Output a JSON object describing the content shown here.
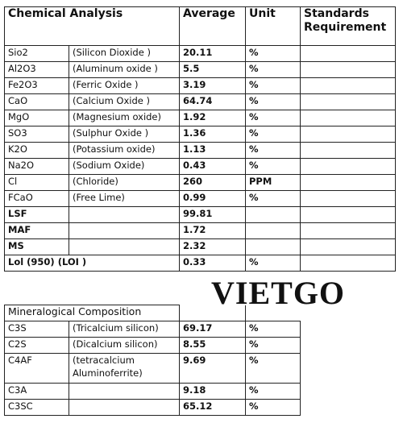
{
  "analysis": {
    "headers": {
      "component": "Chemical Analysis",
      "average": "Average",
      "unit": "Unit",
      "standards": "Standards Requirement"
    },
    "rows": [
      {
        "formula": "Sio2",
        "name": "(Silicon Dioxide )",
        "average": "20.11",
        "unit": "%"
      },
      {
        "formula": "Al2O3",
        "name": "(Aluminum oxide )",
        "average": "5.5",
        "unit": "%"
      },
      {
        "formula": "Fe2O3",
        "name": "(Ferric Oxide )",
        "average": "3.19",
        "unit": "%"
      },
      {
        "formula": "CaO",
        "name": "(Calcium Oxide )",
        "average": "64.74",
        "unit": "%"
      },
      {
        "formula": "MgO",
        "name": "(Magnesium oxide)",
        "average": "1.92",
        "unit": "%"
      },
      {
        "formula": "SO3",
        "name": "(Sulphur Oxide )",
        "average": "1.36",
        "unit": "%"
      },
      {
        "formula": "K2O",
        "name": "(Potassium oxide)",
        "average": "1.13",
        "unit": "%"
      },
      {
        "formula": "Na2O",
        "name": "(Sodium Oxide)",
        "average": "0.43",
        "unit": "%"
      },
      {
        "formula": "Cl",
        "name": "(Chloride)",
        "average": "260",
        "unit": "PPM"
      },
      {
        "formula": "FCaO",
        "name": "(Free Lime)",
        "average": "0.99",
        "unit": "%"
      },
      {
        "formula": "LSF",
        "average": "99.81"
      },
      {
        "formula": "MAF",
        "average": "1.72"
      },
      {
        "formula": "MS",
        "average": "2.32"
      },
      {
        "formula": "Lol (950) (LOI )",
        "average": "0.33",
        "unit": "%",
        "span": true
      }
    ]
  },
  "watermark": "VIETGO",
  "mineralogy": {
    "header": "Mineralogical Composition",
    "rows": [
      {
        "formula": "C3S",
        "name": "(Tricalcium silicon)",
        "average": "69.17",
        "unit": "%"
      },
      {
        "formula": "C2S",
        "name": "(Dicalcium silicon)",
        "average": "8.55",
        "unit": "%"
      },
      {
        "formula": "C4AF",
        "name": "(tetracalcium Aluminoferrite)",
        "average": "9.69",
        "unit": "%"
      },
      {
        "formula": "C3A",
        "average": "9.18",
        "unit": "%"
      },
      {
        "formula": "C3SC",
        "average": "65.12",
        "unit": "%"
      }
    ]
  }
}
